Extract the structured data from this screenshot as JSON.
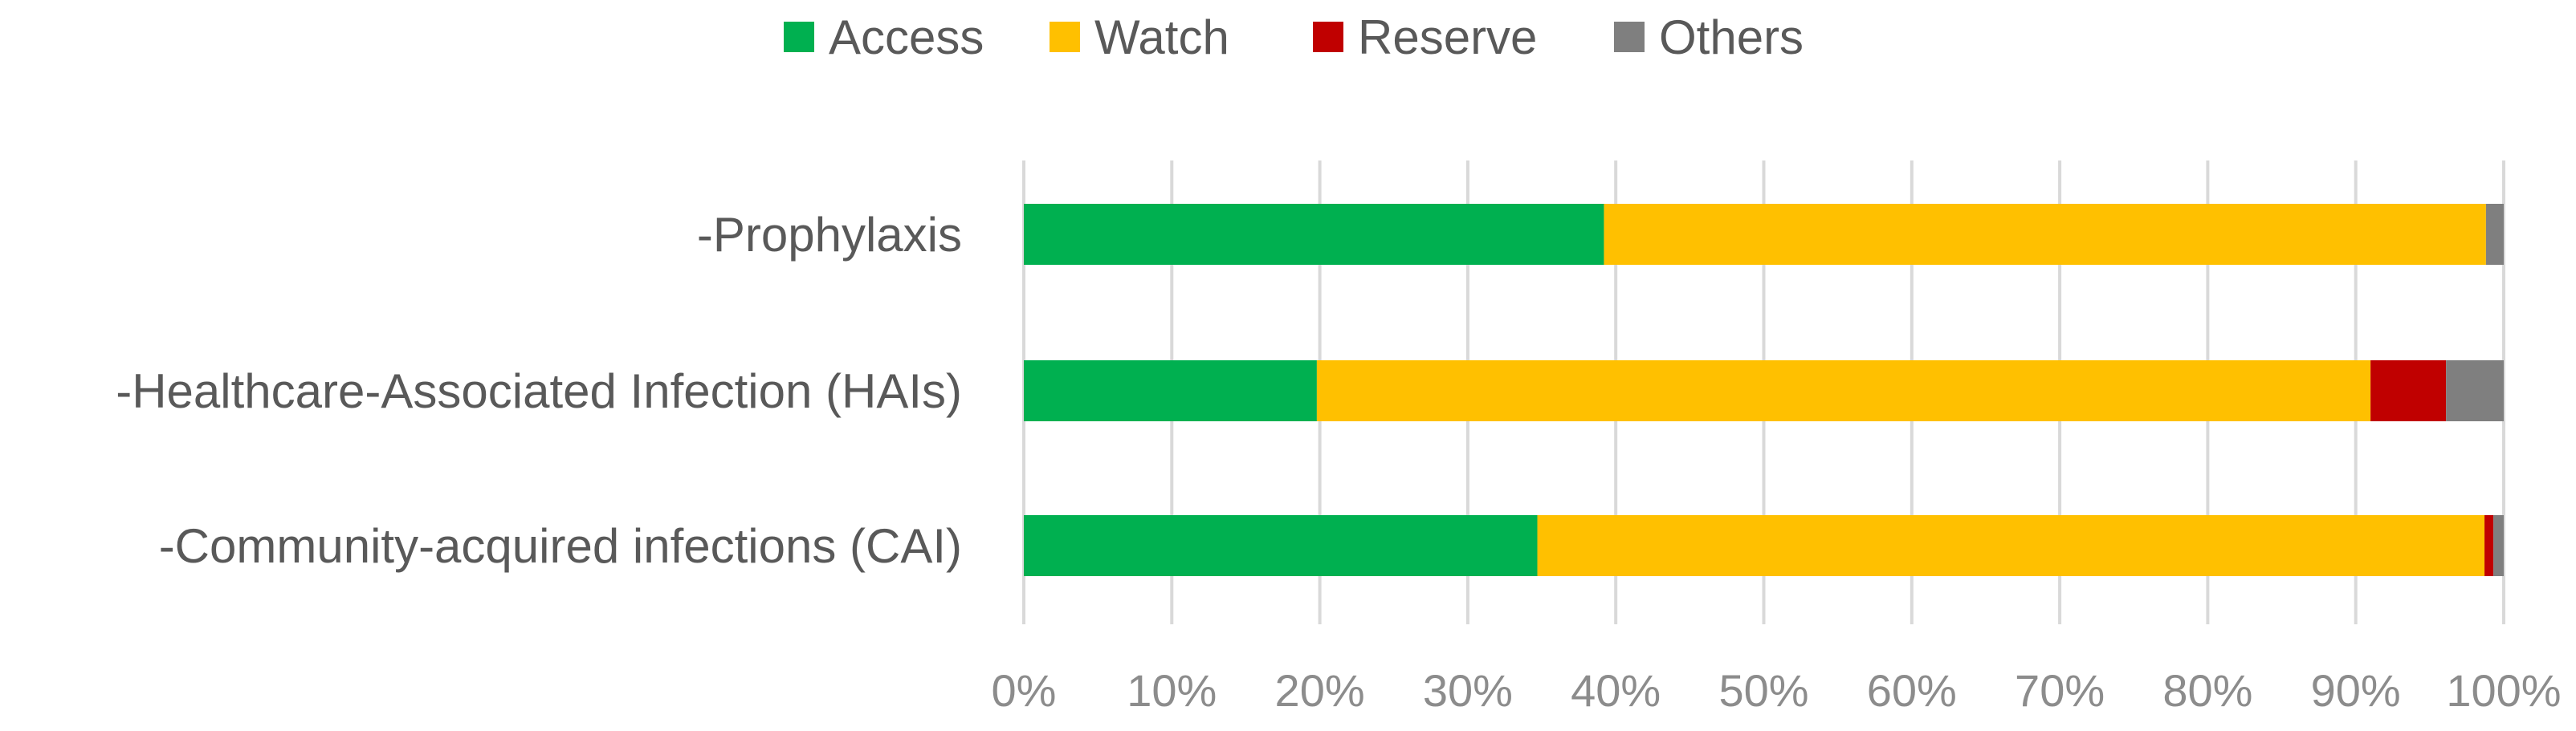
{
  "chart_data": {
    "type": "bar",
    "orientation": "horizontal",
    "stacked": "percent",
    "title": "",
    "xlabel": "",
    "ylabel": "",
    "categories": [
      "-Prophylaxis",
      "-Healthcare-Associated Infection (HAIs)",
      "-Community-acquired infections (CAI)"
    ],
    "series": [
      {
        "name": "Access",
        "color": "#00b050",
        "values": [
          39.2,
          19.8,
          34.7
        ]
      },
      {
        "name": "Watch",
        "color": "#ffc000",
        "values": [
          59.6,
          71.2,
          64.0
        ]
      },
      {
        "name": "Reserve",
        "color": "#c00000",
        "values": [
          0.0,
          5.1,
          0.6
        ]
      },
      {
        "name": "Others",
        "color": "#7f7f7f",
        "values": [
          1.2,
          3.9,
          0.7
        ]
      }
    ],
    "xlim": [
      0,
      100
    ],
    "xticks": [
      "0%",
      "10%",
      "20%",
      "30%",
      "40%",
      "50%",
      "60%",
      "70%",
      "80%",
      "90%",
      "100%"
    ],
    "grid": true,
    "legend_position": "top"
  }
}
